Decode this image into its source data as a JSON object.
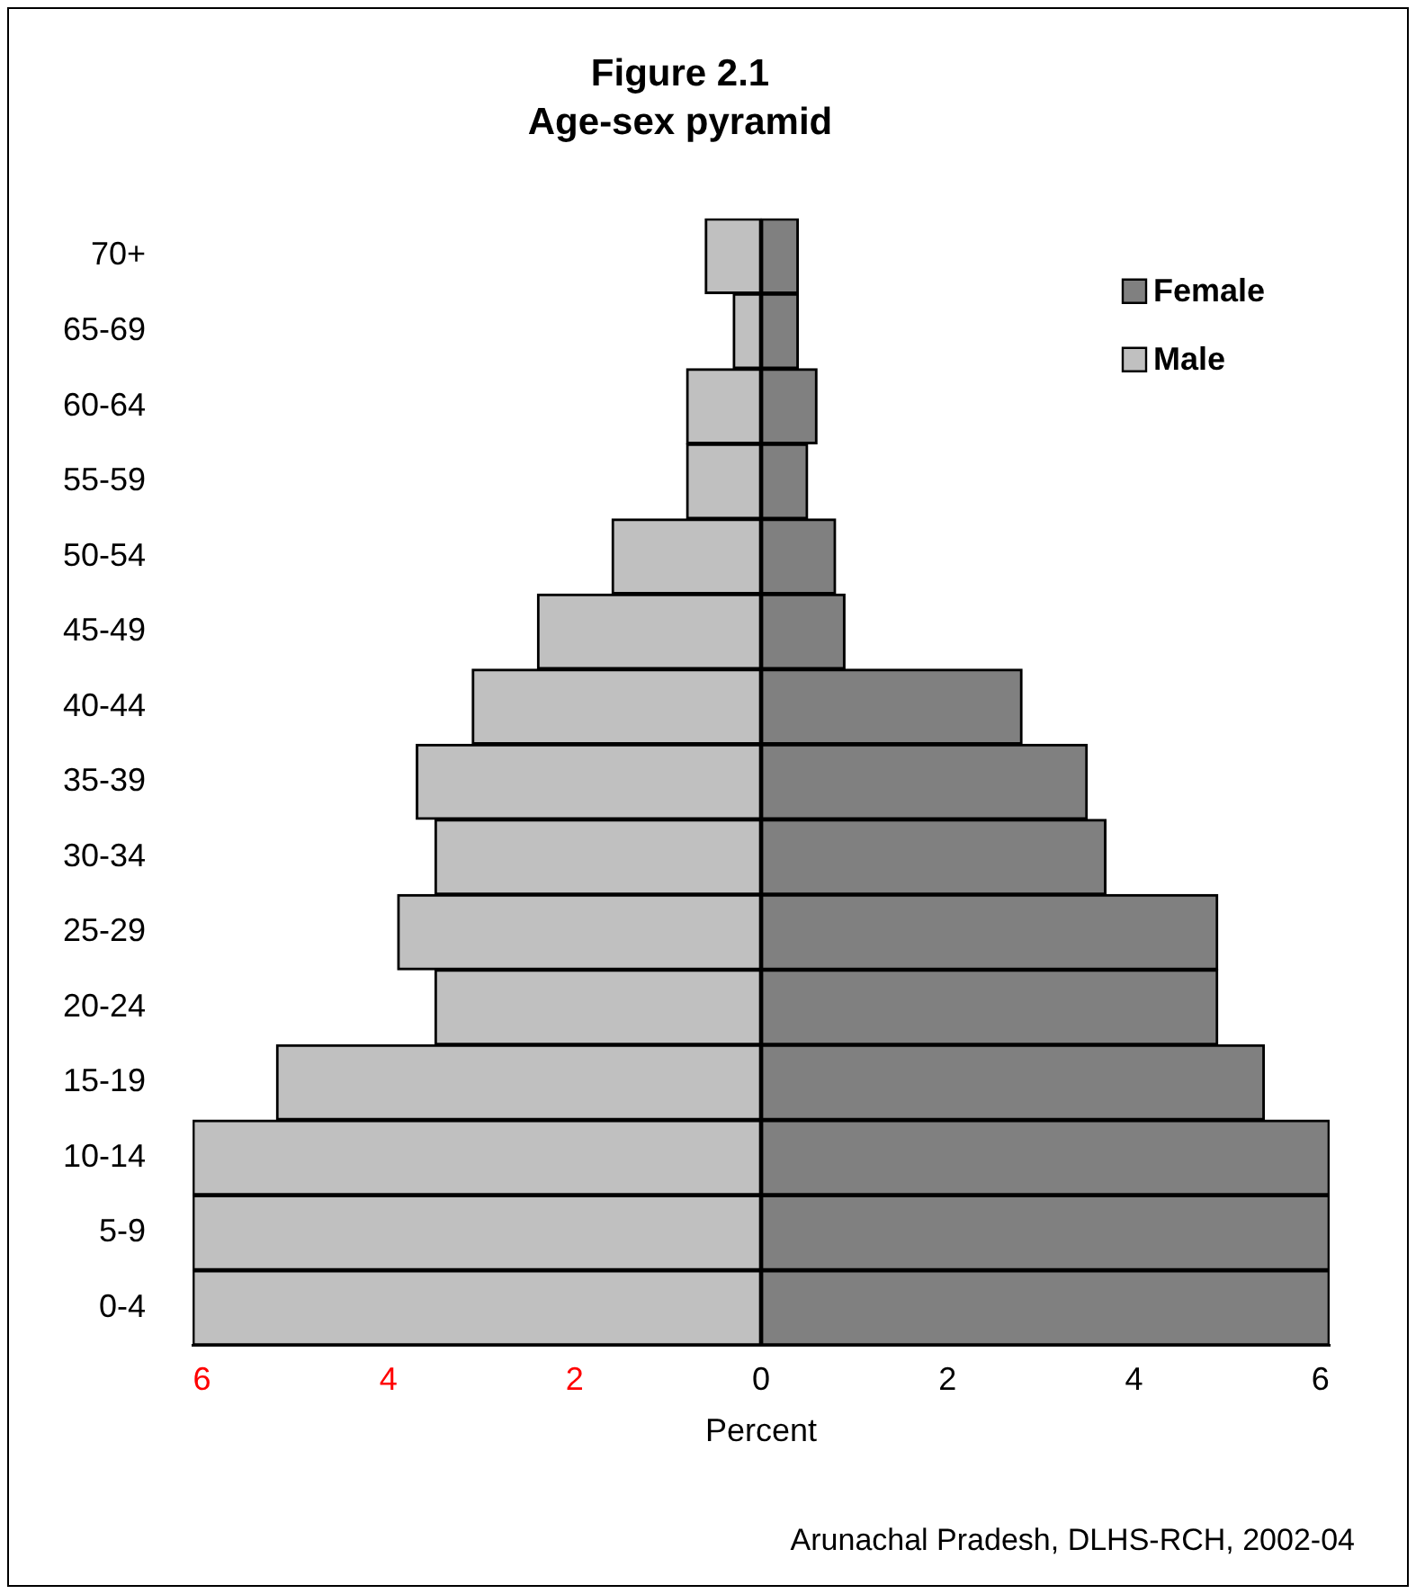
{
  "chart_data": {
    "type": "bar",
    "orientation": "horizontal",
    "stacked": true,
    "title": "Figure 2.1",
    "subtitle": "Age-sex pyramid",
    "xlabel": "Percent",
    "categories": [
      "70+",
      "65-69",
      "60-64",
      "55-59",
      "50-54",
      "45-49",
      "40-44",
      "35-39",
      "30-34",
      "25-29",
      "20-24",
      "15-19",
      "10-14",
      "5-9",
      "0-4"
    ],
    "series": [
      {
        "name": "Female",
        "color": "#808080",
        "values": [
          0.4,
          0.4,
          0.6,
          0.5,
          0.8,
          0.9,
          2.8,
          3.5,
          3.7,
          4.9,
          4.9,
          5.4,
          6.1,
          6.1,
          6.1
        ]
      },
      {
        "name": "Male",
        "color": "#c0c0c0",
        "values": [
          -0.6,
          -0.3,
          -0.8,
          -0.8,
          -1.6,
          -2.4,
          -3.1,
          -3.7,
          -3.5,
          -3.9,
          -3.5,
          -5.2,
          -6.1,
          -6.1,
          -6.1
        ]
      }
    ],
    "xlim": [
      -6.1,
      6.1
    ],
    "xticks": [
      {
        "value": -6,
        "label": "6"
      },
      {
        "value": -4,
        "label": "4"
      },
      {
        "value": -2,
        "label": "2"
      },
      0,
      2,
      4,
      6
    ],
    "grid": false,
    "legend": "top right",
    "annotations": [
      "Arunachal Pradesh, DLHS-RCH, 2002-04"
    ]
  }
}
